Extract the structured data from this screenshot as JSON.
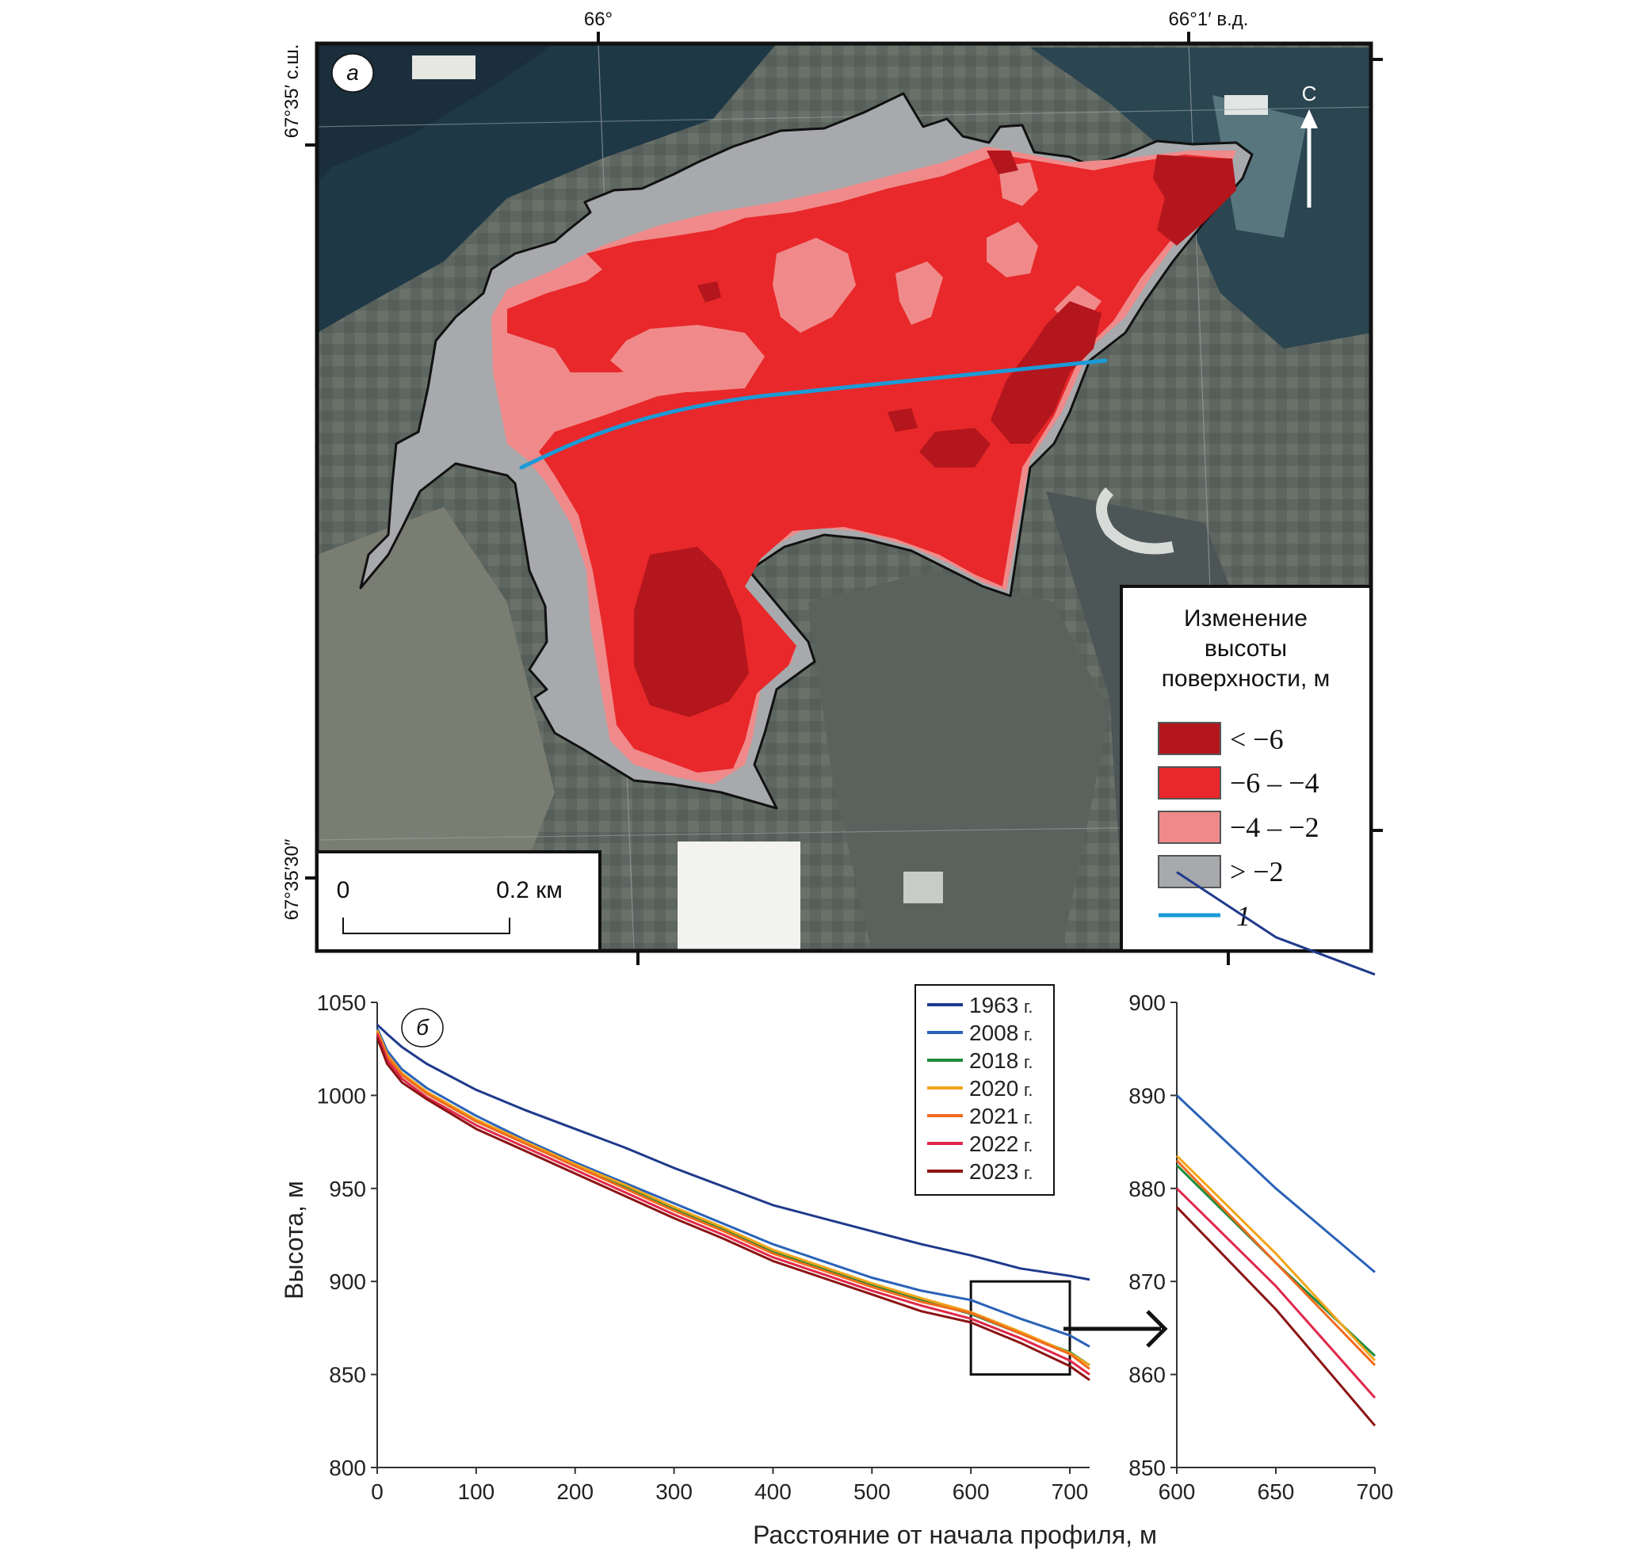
{
  "map": {
    "panel_label": "а",
    "coord_labels": {
      "lon_left": "66°",
      "lon_right": "66°1′ в.д.",
      "lat_top": "67°35′ с.ш.",
      "lat_bottom": "67°35′30″"
    },
    "north_label": "С",
    "scale_bar": {
      "left_label": "0",
      "right_label": "0.2 км"
    },
    "legend": {
      "title_lines": [
        "Изменение",
        "высоты",
        "поверхности, м"
      ],
      "items": [
        {
          "label": "< −6",
          "color": "#b3161c"
        },
        {
          "label": "−6 – −4",
          "color": "#e8282a"
        },
        {
          "label": "−4 – −2",
          "color": "#f08a8a"
        },
        {
          "label": "> −2",
          "color": "#a7a9ac"
        },
        {
          "label": "1",
          "color": "#1b9ad6"
        }
      ]
    }
  },
  "chart_data": [
    {
      "type": "line",
      "panel_label": "б",
      "xlabel": "Расстояние от начала профиля, м",
      "ylabel": "Высота, м",
      "xlim": [
        0,
        720
      ],
      "ylim": [
        800,
        1050
      ],
      "xticks": [
        0,
        100,
        200,
        300,
        400,
        500,
        600,
        700
      ],
      "yticks": [
        800,
        850,
        900,
        950,
        1000,
        1050
      ],
      "legend_position": "top-right",
      "series": [
        {
          "name": "1963",
          "suffix": "г.",
          "color": "#1f3a8c",
          "x": [
            0,
            10,
            25,
            50,
            100,
            150,
            200,
            250,
            300,
            350,
            400,
            450,
            500,
            550,
            600,
            650,
            700,
            720
          ],
          "y": [
            1038,
            1033,
            1026,
            1017,
            1003,
            992,
            982,
            972,
            961,
            951,
            941,
            934,
            927,
            920,
            914,
            907,
            903,
            901
          ]
        },
        {
          "name": "2008",
          "suffix": "г.",
          "color": "#2a62b8",
          "x": [
            0,
            10,
            25,
            50,
            100,
            150,
            200,
            250,
            300,
            350,
            400,
            450,
            500,
            550,
            600,
            650,
            700,
            720
          ],
          "y": [
            1036,
            1024,
            1014,
            1004,
            989,
            976,
            964,
            953,
            942,
            931,
            920,
            911,
            902,
            895,
            890,
            880,
            871,
            865
          ]
        },
        {
          "name": "2018",
          "suffix": "г.",
          "color": "#1e8b3c",
          "x": [
            0,
            10,
            25,
            50,
            100,
            150,
            200,
            250,
            300,
            350,
            400,
            450,
            500,
            550,
            600,
            650,
            700,
            720
          ],
          "y": [
            1034,
            1021,
            1011,
            1001,
            986,
            974,
            962,
            951,
            939,
            928,
            916,
            907,
            898,
            890,
            882.5,
            872,
            862,
            855
          ]
        },
        {
          "name": "2020",
          "suffix": "г.",
          "color": "#f2a51a",
          "x": [
            0,
            10,
            25,
            50,
            100,
            150,
            200,
            250,
            300,
            350,
            400,
            450,
            500,
            550,
            600,
            650,
            700,
            720
          ],
          "y": [
            1035,
            1022,
            1012,
            1002,
            987,
            975,
            963,
            952,
            940,
            929,
            917,
            908,
            899,
            891,
            883.5,
            873,
            861.5,
            855
          ]
        },
        {
          "name": "2021",
          "suffix": "г.",
          "color": "#f26b1d",
          "x": [
            0,
            10,
            25,
            50,
            100,
            150,
            200,
            250,
            300,
            350,
            400,
            450,
            500,
            550,
            600,
            650,
            700,
            720
          ],
          "y": [
            1034,
            1021,
            1011,
            1001,
            986,
            974,
            962,
            950,
            938,
            927,
            915,
            906,
            897,
            889,
            883,
            872,
            861,
            853
          ]
        },
        {
          "name": "2022",
          "suffix": "г.",
          "color": "#e0284a",
          "x": [
            0,
            10,
            25,
            50,
            100,
            150,
            200,
            250,
            300,
            350,
            400,
            450,
            500,
            550,
            600,
            650,
            700,
            720
          ],
          "y": [
            1033,
            1019,
            1009,
            999,
            984,
            972,
            960,
            948,
            936,
            925,
            913,
            904,
            895,
            887,
            880,
            869.5,
            857.5,
            850
          ]
        },
        {
          "name": "2023",
          "suffix": "г.",
          "color": "#8c1414",
          "x": [
            0,
            10,
            25,
            50,
            100,
            150,
            200,
            250,
            300,
            350,
            400,
            450,
            500,
            550,
            600,
            650,
            700,
            720
          ],
          "y": [
            1031,
            1017,
            1007,
            998,
            982,
            970,
            958,
            946,
            934,
            923,
            911,
            902,
            893,
            884,
            878,
            867,
            854.5,
            847
          ]
        }
      ],
      "zoom_box": {
        "x": [
          600,
          700
        ],
        "y": [
          850,
          900
        ]
      }
    },
    {
      "type": "line",
      "role": "zoom-inset",
      "xlim": [
        600,
        700
      ],
      "ylim": [
        850,
        900
      ],
      "xticks": [
        600,
        650,
        700
      ],
      "yticks": [
        850,
        860,
        870,
        880,
        890,
        900
      ]
    }
  ]
}
